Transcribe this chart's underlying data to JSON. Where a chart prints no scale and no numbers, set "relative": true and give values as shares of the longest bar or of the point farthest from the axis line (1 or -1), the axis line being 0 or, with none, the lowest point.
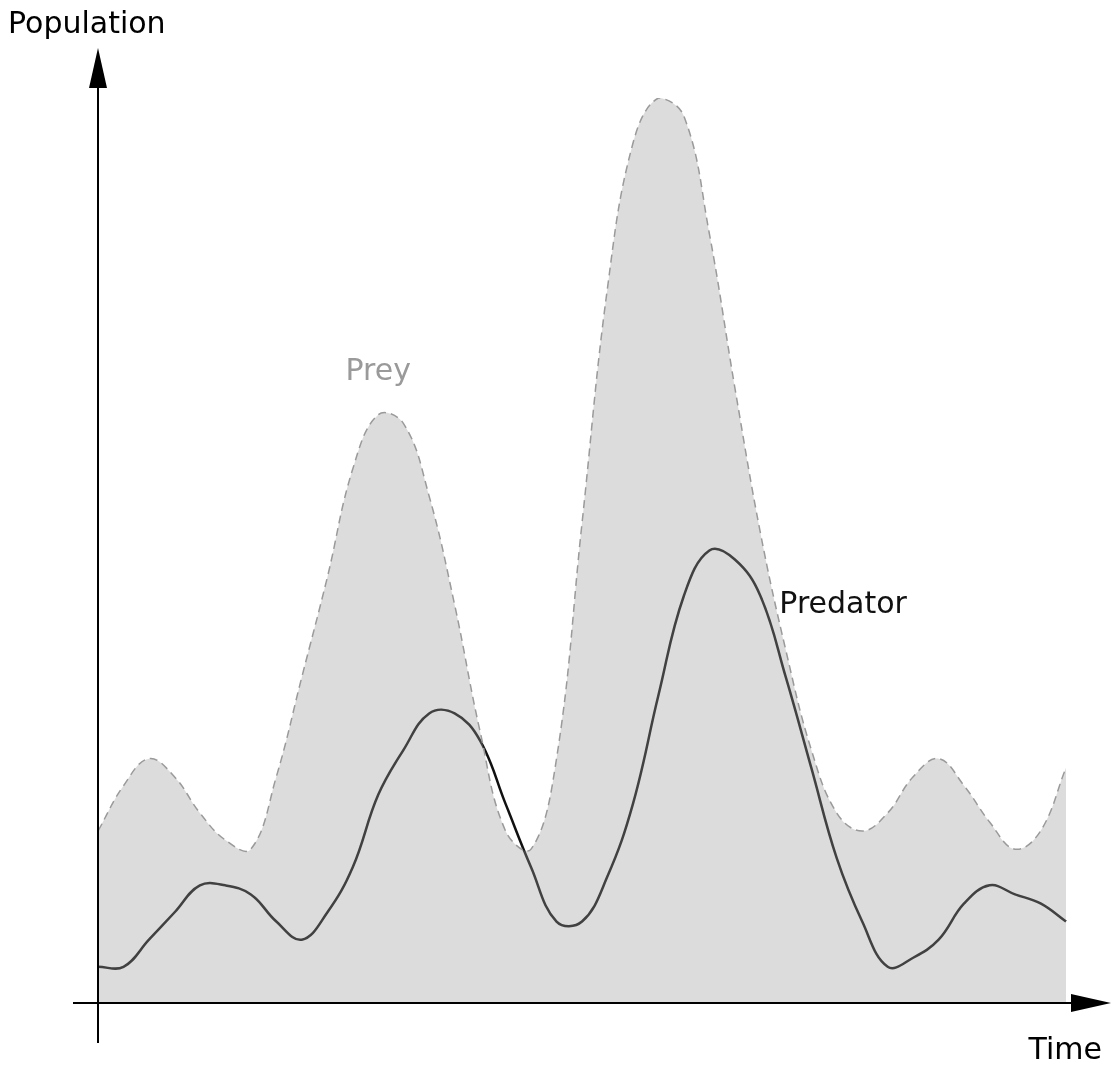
{
  "chart_data": {
    "type": "area",
    "relative": true,
    "xlabel": "Time",
    "ylabel": "Population",
    "categories": [
      null,
      null,
      null,
      null,
      null,
      null,
      null,
      null,
      null,
      null,
      null,
      null,
      null,
      null,
      null,
      null,
      null,
      null,
      null,
      null,
      null,
      null,
      null,
      null,
      null,
      null,
      null,
      null,
      null,
      null,
      null,
      null,
      null,
      null,
      null,
      null,
      null,
      null,
      null
    ],
    "series": [
      {
        "name": "Prey",
        "color": "#9a9a9a",
        "line_style": "dashed",
        "values": [
          0.19,
          0.24,
          0.27,
          0.25,
          0.21,
          0.18,
          0.17,
          0.25,
          0.36,
          0.47,
          0.59,
          0.65,
          0.64,
          0.56,
          0.44,
          0.3,
          0.19,
          0.17,
          0.27,
          0.53,
          0.79,
          0.95,
          1.0,
          0.98,
          0.85,
          0.68,
          0.52,
          0.39,
          0.28,
          0.21,
          0.19,
          0.21,
          0.25,
          0.27,
          0.24,
          0.2,
          0.17,
          0.19,
          0.26
        ]
      },
      {
        "name": "Predator",
        "type": "line",
        "color": "#111111",
        "line_style": "solid",
        "values": [
          0.04,
          0.04,
          0.07,
          0.1,
          0.13,
          0.13,
          0.12,
          0.09,
          0.07,
          0.1,
          0.15,
          0.23,
          0.28,
          0.32,
          0.32,
          0.29,
          0.22,
          0.15,
          0.09,
          0.09,
          0.14,
          0.22,
          0.34,
          0.45,
          0.5,
          0.49,
          0.45,
          0.36,
          0.26,
          0.16,
          0.09,
          0.04,
          0.05,
          0.07,
          0.11,
          0.13,
          0.12,
          0.11,
          0.09
        ]
      }
    ],
    "legend": false,
    "marker": "none"
  }
}
